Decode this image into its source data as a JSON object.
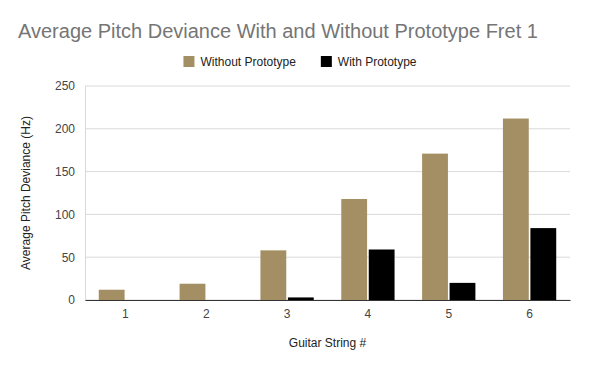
{
  "chart_data": {
    "type": "bar",
    "title": "Average Pitch Deviance With and Without Prototype Fret 1",
    "x_label": "Guitar String #",
    "y_label": "Average Pitch Deviance (Hz)",
    "categories": [
      "1",
      "2",
      "3",
      "4",
      "5",
      "6"
    ],
    "series": [
      {
        "name": "Without Prototype",
        "color": "#a38f63",
        "values": [
          12,
          19,
          58,
          118,
          171,
          212
        ]
      },
      {
        "name": "With Prototype",
        "color": "#000000",
        "values": [
          0,
          0,
          3,
          59,
          20,
          84
        ]
      }
    ],
    "ylim": [
      0,
      250
    ],
    "yticks": [
      0,
      50,
      100,
      150,
      200,
      250
    ],
    "grid": true,
    "legend": "top"
  }
}
